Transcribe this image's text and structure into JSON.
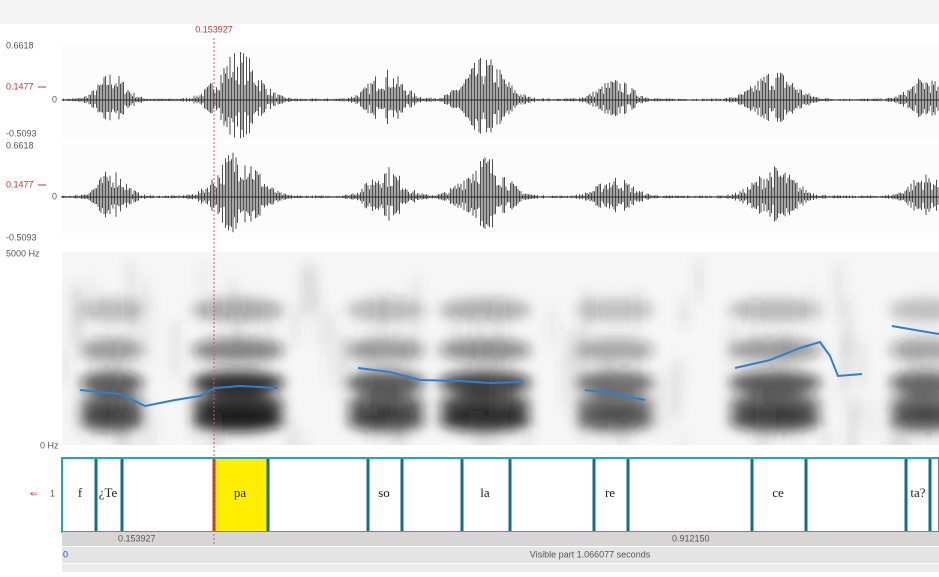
{
  "cursor": {
    "time": "0.153927"
  },
  "channels": [
    {
      "max": "0.6618",
      "mark": "0.1477",
      "zero": "0",
      "min": "-0.5093"
    },
    {
      "max": "0.6618",
      "mark": "0.1477",
      "zero": "0",
      "min": "-0.5093"
    }
  ],
  "spectrogram": {
    "top": "5000 Hz",
    "bottom": "0 Hz"
  },
  "tier": {
    "number": "1",
    "intervals": [
      "f",
      "¿Te",
      "pa",
      "so",
      "la",
      "re",
      "ce",
      "ta?"
    ]
  },
  "selection": {
    "start": "0.153927",
    "end": "0.912150"
  },
  "footer": {
    "start": "0",
    "visible": "Visible part 1.066077 seconds"
  }
}
